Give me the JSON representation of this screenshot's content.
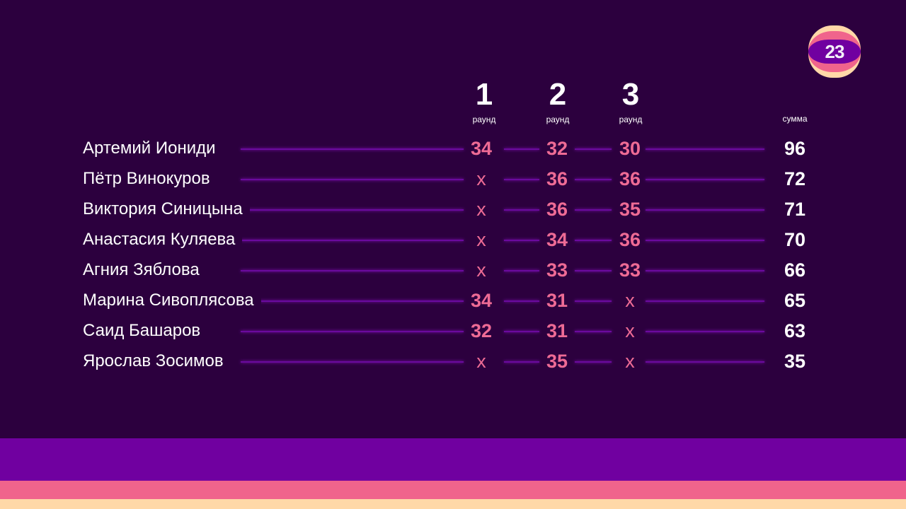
{
  "logo": {
    "text": "23",
    "colors": [
      "#ffd8a8",
      "#f0648c",
      "#7000a0"
    ]
  },
  "columns": [
    {
      "number": "1",
      "label": "раунд"
    },
    {
      "number": "2",
      "label": "раунд"
    },
    {
      "number": "3",
      "label": "раунд"
    }
  ],
  "sum_label": "сумма",
  "rows": [
    {
      "name": "Артемий Иониди",
      "r1": "34",
      "r2": "32",
      "r3": "30",
      "total": "96"
    },
    {
      "name": "Пётр Винокуров",
      "r1": "x",
      "r2": "36",
      "r3": "36",
      "total": "72"
    },
    {
      "name": "Виктория Синицына",
      "r1": "x",
      "r2": "36",
      "r3": "35",
      "total": "71"
    },
    {
      "name": "Анастасия Куляева",
      "r1": "x",
      "r2": "34",
      "r3": "36",
      "total": "70"
    },
    {
      "name": "Агния Зяблова",
      "r1": "x",
      "r2": "33",
      "r3": "33",
      "total": "66"
    },
    {
      "name": "Марина Сивоплясова",
      "r1": "34",
      "r2": "31",
      "r3": "x",
      "total": "65"
    },
    {
      "name": "Саид Башаров",
      "r1": "32",
      "r2": "31",
      "r3": "x",
      "total": "63"
    },
    {
      "name": "Ярослав Зосимов",
      "r1": "x",
      "r2": "35",
      "r3": "x",
      "total": "35"
    }
  ],
  "colors": {
    "background": "#2c003e",
    "score": "#ee6b95",
    "line": "#6a0a9e",
    "stripe_purple": "#7000a0",
    "stripe_pink": "#f0648c",
    "stripe_cream": "#ffd8a8"
  }
}
